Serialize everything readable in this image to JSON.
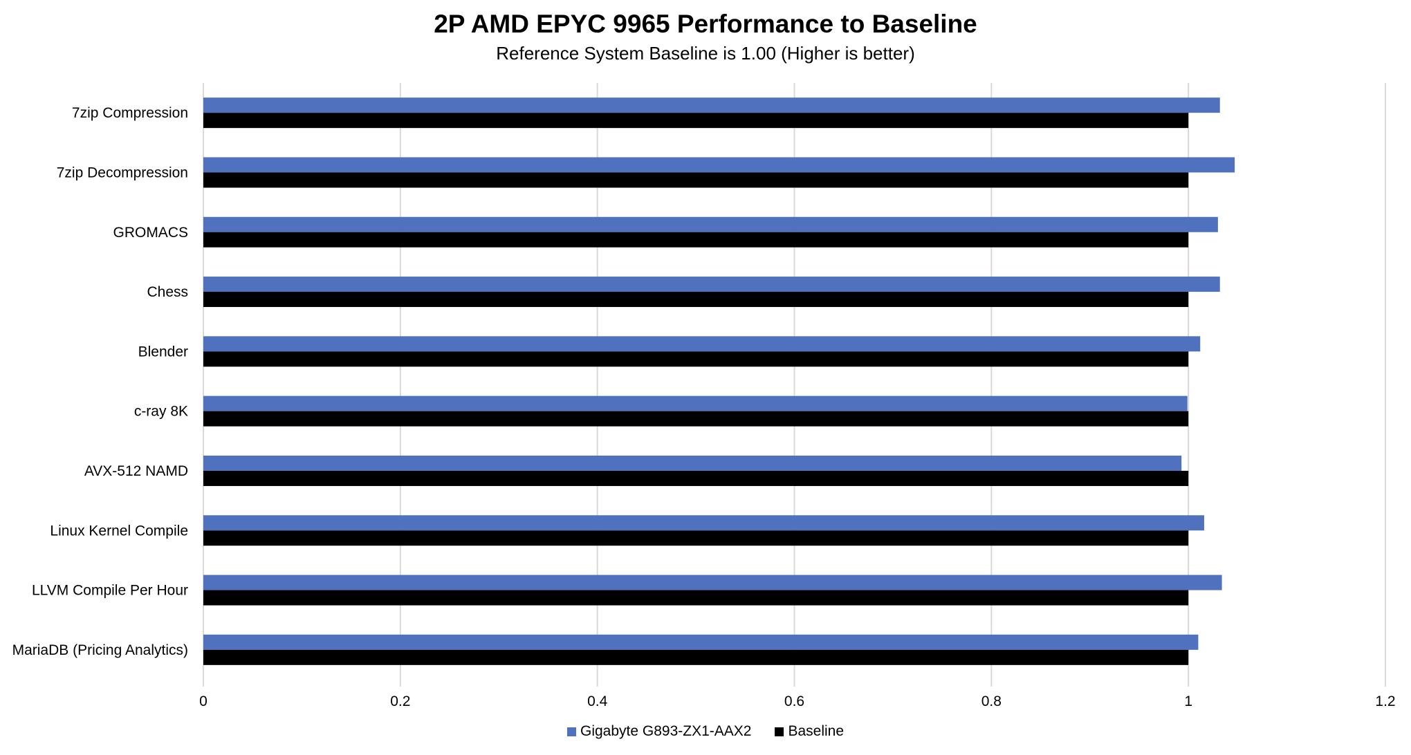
{
  "chart_data": {
    "type": "bar",
    "orientation": "horizontal",
    "title": "2P AMD EPYC 9965 Performance to Baseline",
    "subtitle": "Reference System Baseline is 1.00 (Higher is better)",
    "categories": [
      "7zip Compression",
      "7zip Decompression",
      "GROMACS",
      "Chess",
      "Blender",
      "c-ray 8K",
      "AVX-512 NAMD",
      "Linux Kernel Compile",
      "LLVM Compile Per Hour",
      "MariaDB (Pricing Analytics)"
    ],
    "series": [
      {
        "name": "Gigabyte G893-ZX1-AAX2",
        "color": "#4f71be",
        "values": [
          1.032,
          1.047,
          1.03,
          1.032,
          1.012,
          0.999,
          0.993,
          1.016,
          1.034,
          1.01
        ]
      },
      {
        "name": "Baseline",
        "color": "#000000",
        "values": [
          1,
          1,
          1,
          1,
          1,
          1,
          1,
          1,
          1,
          1
        ]
      }
    ],
    "xlim": [
      0,
      1.2
    ],
    "xticks": [
      "0",
      "0.2",
      "0.4",
      "0.6",
      "0.8",
      "1",
      "1.2"
    ],
    "grid": true,
    "legend": "bottom"
  }
}
